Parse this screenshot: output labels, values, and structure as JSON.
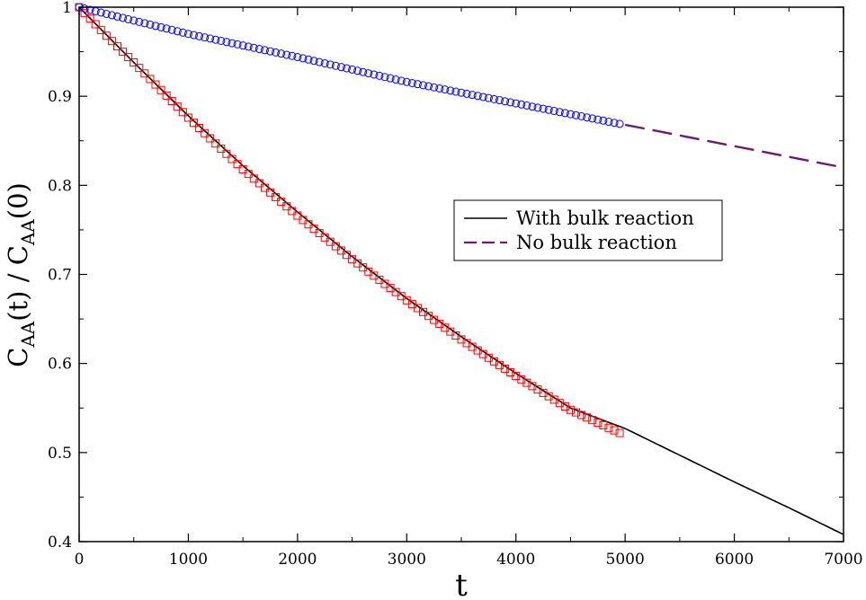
{
  "chart_data": {
    "type": "line",
    "title": "",
    "xlabel": "t",
    "ylabel": {
      "parts": [
        "C",
        "AA",
        "(t) / C",
        "AA",
        "(0)"
      ]
    },
    "xlim": [
      0,
      7000
    ],
    "ylim": [
      0.4,
      1.0
    ],
    "xticks": [
      0,
      1000,
      2000,
      3000,
      4000,
      5000,
      6000,
      7000
    ],
    "yticks": [
      0.4,
      0.5,
      0.6,
      0.7,
      0.8,
      0.9,
      1.0
    ],
    "xtick_labels": [
      "0",
      "1000",
      "2000",
      "3000",
      "4000",
      "5000",
      "6000",
      "7000"
    ],
    "ytick_labels": [
      "0.4",
      "0.5",
      "0.6",
      "0.7",
      "0.8",
      "0.9",
      "1"
    ],
    "grid": false,
    "legend_position": "center-right",
    "series": [
      {
        "name": "With bulk reaction",
        "style": "solid",
        "color": "#000000",
        "x": [
          0,
          500,
          1000,
          1500,
          2000,
          2500,
          3000,
          3500,
          4000,
          4500,
          5000,
          5500,
          6000,
          6500,
          7000
        ],
        "y": [
          1.0,
          0.938,
          0.878,
          0.822,
          0.77,
          0.72,
          0.673,
          0.63,
          0.589,
          0.55,
          0.527,
          0.497,
          0.467,
          0.438,
          0.408
        ]
      },
      {
        "name": "No bulk reaction",
        "style": "dashed",
        "color": "#6b1d6b",
        "x": [
          5000,
          7000
        ],
        "y": [
          0.868,
          0.82
        ]
      },
      {
        "style": "square-markers",
        "color": "#ff0000",
        "x": [
          0,
          250,
          500,
          1000,
          1500,
          2000,
          2500,
          3000,
          3500,
          4000,
          4500,
          4950
        ],
        "y": [
          1.0,
          0.968,
          0.938,
          0.876,
          0.818,
          0.766,
          0.717,
          0.671,
          0.627,
          0.586,
          0.548,
          0.522
        ]
      },
      {
        "style": "circle-markers",
        "color": "#0000ff",
        "x": [
          0,
          1000,
          2000,
          3000,
          4000,
          4950
        ],
        "y": [
          1.0,
          0.97,
          0.944,
          0.916,
          0.892,
          0.869
        ]
      }
    ]
  }
}
